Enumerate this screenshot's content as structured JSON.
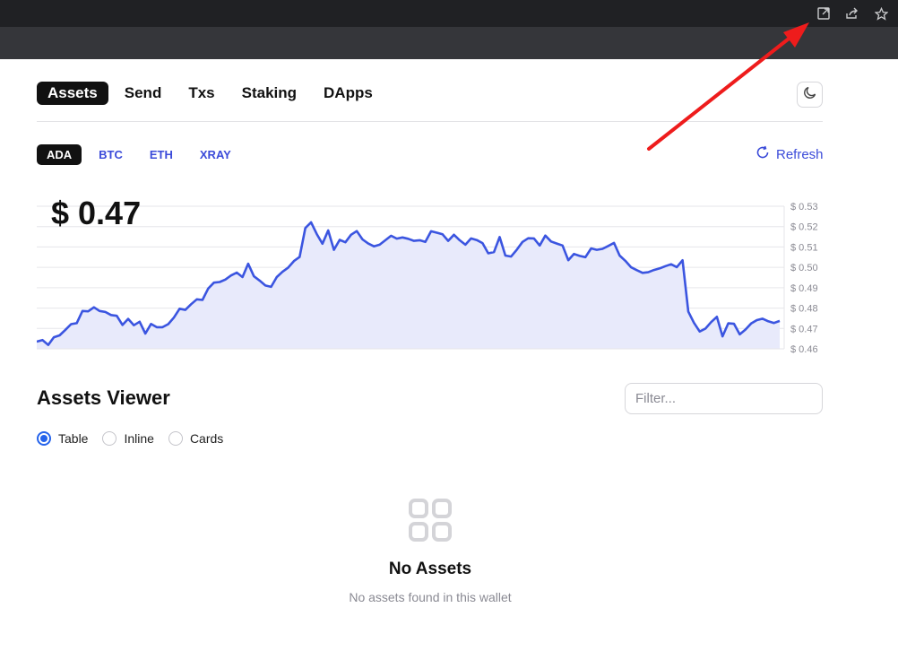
{
  "browser": {
    "icons": [
      "open-in-new-icon",
      "share-icon",
      "star-icon"
    ]
  },
  "nav": {
    "tabs": [
      "Assets",
      "Send",
      "Txs",
      "Staking",
      "DApps"
    ],
    "active": "Assets",
    "theme_icon": "moon-icon"
  },
  "coins": {
    "tabs": [
      "ADA",
      "BTC",
      "ETH",
      "XRAY"
    ],
    "active": "ADA",
    "refresh_label": "Refresh"
  },
  "price": "$ 0.47",
  "chart_data": {
    "type": "area",
    "ylim": [
      0.46,
      0.53
    ],
    "y_ticks": [
      "$ 0.53",
      "$ 0.52",
      "$ 0.51",
      "$ 0.50",
      "$ 0.49",
      "$ 0.48",
      "$ 0.47",
      "$ 0.46"
    ],
    "y_tick_values": [
      0.53,
      0.52,
      0.51,
      0.5,
      0.49,
      0.48,
      0.47,
      0.46
    ],
    "values": [
      0.4635,
      0.4643,
      0.4619,
      0.4657,
      0.4666,
      0.4693,
      0.4721,
      0.4726,
      0.4786,
      0.4784,
      0.4804,
      0.4786,
      0.4781,
      0.4766,
      0.4762,
      0.4717,
      0.4747,
      0.4716,
      0.4733,
      0.4675,
      0.4722,
      0.4706,
      0.4706,
      0.4721,
      0.4753,
      0.4797,
      0.4791,
      0.4819,
      0.4843,
      0.484,
      0.4896,
      0.4925,
      0.4928,
      0.494,
      0.496,
      0.4974,
      0.4952,
      0.5018,
      0.4956,
      0.4935,
      0.4911,
      0.4904,
      0.4952,
      0.4978,
      0.4999,
      0.5031,
      0.5051,
      0.5193,
      0.5221,
      0.5163,
      0.5116,
      0.5181,
      0.5086,
      0.5135,
      0.5123,
      0.516,
      0.5178,
      0.5137,
      0.5117,
      0.5103,
      0.5111,
      0.5133,
      0.5155,
      0.5141,
      0.5147,
      0.514,
      0.513,
      0.5133,
      0.5125,
      0.5177,
      0.517,
      0.5162,
      0.513,
      0.516,
      0.5133,
      0.5111,
      0.5142,
      0.5134,
      0.5119,
      0.5069,
      0.5075,
      0.5149,
      0.5058,
      0.5053,
      0.5087,
      0.5125,
      0.5143,
      0.5142,
      0.5107,
      0.5156,
      0.5127,
      0.5117,
      0.5107,
      0.5035,
      0.5066,
      0.5056,
      0.505,
      0.5093,
      0.5086,
      0.5091,
      0.5105,
      0.512,
      0.5058,
      0.5032,
      0.5,
      0.4986,
      0.4973,
      0.4976,
      0.4987,
      0.4995,
      0.5006,
      0.5015,
      0.5001,
      0.5035,
      0.4783,
      0.4728,
      0.4685,
      0.4699,
      0.4731,
      0.4757,
      0.4661,
      0.4725,
      0.4723,
      0.4671,
      0.4694,
      0.4724,
      0.4741,
      0.4748,
      0.4735,
      0.4727,
      0.4737
    ],
    "grid": true,
    "line_color": "#3b55e0",
    "fill_color": "#e8eafb"
  },
  "viewer": {
    "title": "Assets Viewer",
    "filter_placeholder": "Filter...",
    "options": [
      "Table",
      "Inline",
      "Cards"
    ],
    "selected": "Table"
  },
  "empty": {
    "icon": "grid-icon",
    "title": "No Assets",
    "subtitle": "No assets found in this wallet"
  },
  "colors": {
    "accent": "#3b4bd9",
    "radio": "#2563eb",
    "annotation_arrow": "#ee1c1c"
  }
}
